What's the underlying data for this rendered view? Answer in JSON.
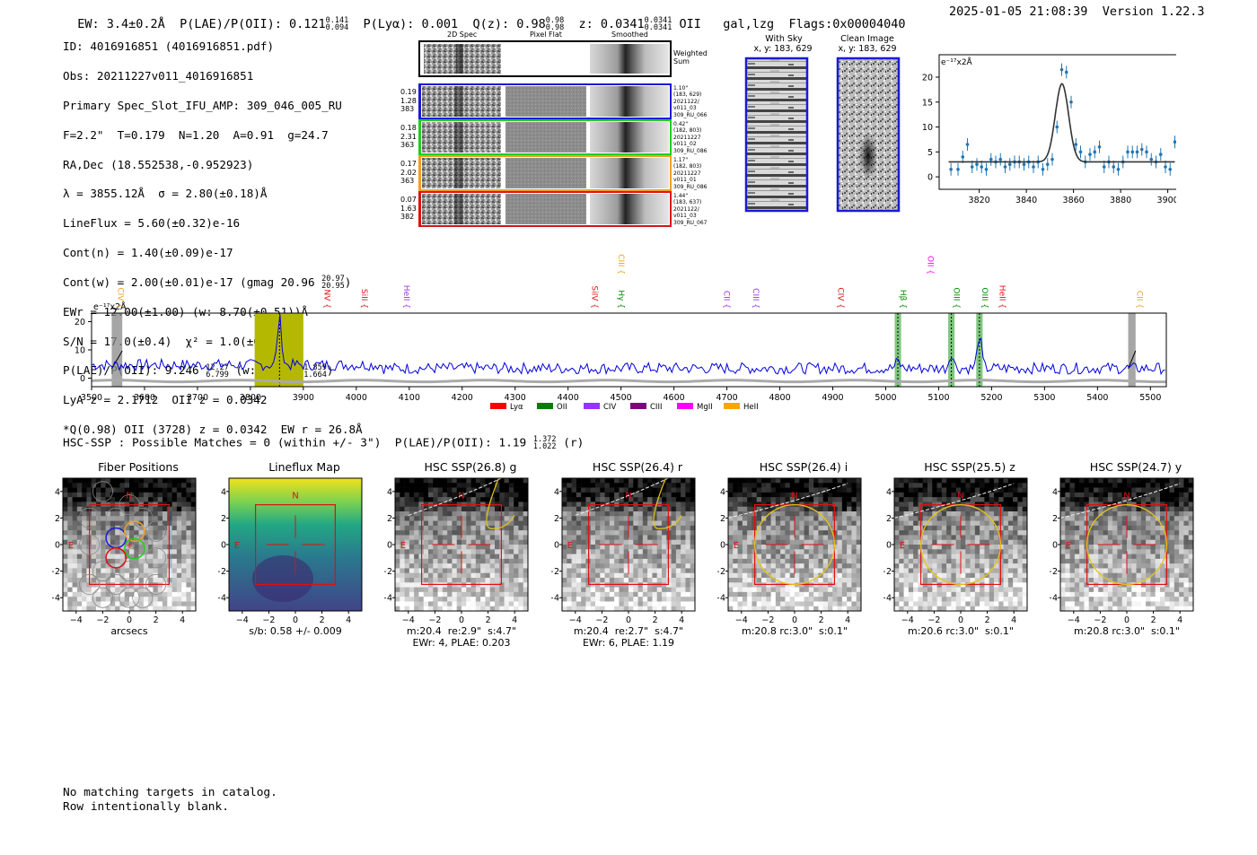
{
  "header": {
    "ew_label": "EW: 3.4±0.2Å",
    "plae_label": "P(LAE)/P(OII): 0.121",
    "plae_hi": "0.141",
    "plae_lo": "0.094",
    "plya": "P(Lyα): 0.001",
    "qz_label": "Q(z): 0.98",
    "qz_hi": "0.98",
    "qz_lo": "0.98",
    "z_label": "z: 0.0341",
    "z_hi": "0.0341",
    "z_lo": "0.0341",
    "line": "OII",
    "cls": "gal,lzg",
    "flags": "Flags:0x00004040",
    "timestamp": "2025-01-05 21:08:39",
    "version": "Version 1.22.3"
  },
  "info": {
    "id": "ID: 4016916851 (4016916851.pdf)",
    "obs": "Obs: 20211227v011_4016916851",
    "primary": "Primary Spec_Slot_IFU_AMP: 309_046_005_RU",
    "fit": "F=2.2\"  T=0.179  N=1.20  A=0.91  g=24.7",
    "radec": "RA,Dec (18.552538,-0.952923)",
    "lambda": "λ = 3855.12Å  σ = 2.80(±0.18)Å",
    "lineflux": "LineFlux = 5.60(±0.32)e-16",
    "contn": "Cont(n) = 1.40(±0.09)e-17",
    "contw": "Cont(w) = 2.00(±0.01)e-17 (gmag 20.96",
    "gmag_hi": "20.97",
    "gmag_lo": "20.95",
    "contw_close": ")",
    "ewr": "EWr = 12.00(±1.00) (w: 8.70(±0.51))Å",
    "sn": "S/N = 17.0(±0.4)  χ² = 1.0(±0.2)",
    "plae": "P(LAE)/P(OII): 9.246",
    "plae_hi": "12.27",
    "plae_lo": "6.799",
    "plae_w": "(w: 1.766",
    "plae_w_hi": "1.859",
    "plae_w_lo": "1.664",
    "plae_close": ")",
    "lya": "LyA z = 2.1712  OII z = 0.0342",
    "q": "*Q(0.98) OII (3728) z = 0.0342  EW r = 26.8Å"
  },
  "cutouts": {
    "col_2d": "2D Spec",
    "col_flat": "Pixel Flat",
    "col_smooth": "Smoothed",
    "weighted": "Weighted Sum",
    "rows": [
      {
        "l1": "0.19",
        "l2": "1.28",
        "l3": "383",
        "r1": "1.10\"",
        "r2": "(183, 629)",
        "r3": "2021122/",
        "r4": "v011_03",
        "r5": "309_RU_066",
        "color": "#1a1ad6"
      },
      {
        "l1": "0.18",
        "l2": "2.31",
        "l3": "363",
        "r1": "0.42\"",
        "r2": "(182, 803)",
        "r3": "20211227",
        "r4": "v011_02",
        "r5": "309_RU_086",
        "color": "#22cc22"
      },
      {
        "l1": "0.17",
        "l2": "2.02",
        "l3": "363",
        "r1": "1.17\"",
        "r2": "(182, 803)",
        "r3": "20211227",
        "r4": "v011_01",
        "r5": "309_RU_086",
        "color": "#f0a020"
      },
      {
        "l1": "0.07",
        "l2": "1.63",
        "l3": "382",
        "r1": "1.44\"",
        "r2": "(183, 637)",
        "r3": "2021122/",
        "r4": "v011_03",
        "r5": "309_RU_067",
        "color": "#dd1111"
      }
    ]
  },
  "sky": {
    "with_sky": "With Sky",
    "clean": "Clean Image",
    "coords": "x, y: 183, 629"
  },
  "zoom_chart": {
    "unit": "e⁻¹⁷x2Å",
    "xticks": [
      "3820",
      "3840",
      "3860",
      "3880",
      "3900"
    ],
    "yticks": [
      "0",
      "5",
      "10",
      "15",
      "20"
    ]
  },
  "chart_data": [
    {
      "type": "scatter",
      "title": "",
      "ylabel": "e⁻¹⁷x2Å",
      "xlim": [
        3803,
        3907
      ],
      "ylim": [
        -2.5,
        24.5
      ],
      "x": [
        3808,
        3811,
        3813,
        3815,
        3817,
        3819,
        3821,
        3823,
        3825,
        3827,
        3829,
        3831,
        3833,
        3835,
        3837,
        3839,
        3841,
        3843,
        3845,
        3847,
        3849,
        3851,
        3853,
        3855,
        3857,
        3859,
        3861,
        3863,
        3865,
        3867,
        3869,
        3871,
        3873,
        3875,
        3877,
        3879,
        3881,
        3883,
        3885,
        3887,
        3889,
        3891,
        3893,
        3895,
        3897,
        3899,
        3901,
        3903
      ],
      "y": [
        1.5,
        1.5,
        4.0,
        6.5,
        2.0,
        2.5,
        2.0,
        1.5,
        3.5,
        3.0,
        3.5,
        2.0,
        2.5,
        3.0,
        3.0,
        2.5,
        3.0,
        2.0,
        3.0,
        1.5,
        2.5,
        3.5,
        10.0,
        21.5,
        21.0,
        15.0,
        6.5,
        5.0,
        3.0,
        4.5,
        5.0,
        6.0,
        2.0,
        3.0,
        2.0,
        1.5,
        3.0,
        5.0,
        5.0,
        5.0,
        5.5,
        5.0,
        3.5,
        3.0,
        4.5,
        2.0,
        1.5,
        7.0
      ],
      "fit_peak": 18.7,
      "fit_center": 3855.1,
      "fit_sigma": 2.8,
      "fit_cont": 3.0
    },
    {
      "type": "line",
      "xlim": [
        3500,
        5530
      ],
      "ylim": [
        -3,
        23
      ],
      "xticks": [
        "3500",
        "3600",
        "3700",
        "3800",
        "3900",
        "4000",
        "4100",
        "4200",
        "4300",
        "4400",
        "4500",
        "4600",
        "4700",
        "4800",
        "4900",
        "5000",
        "5100",
        "5200",
        "5300",
        "5400",
        "5500"
      ],
      "yticks": [
        "0",
        "10",
        "20"
      ],
      "unit": "e⁻¹⁷x2Å",
      "peaks": [
        {
          "x": 3855,
          "y": 20
        },
        {
          "x": 5023,
          "y": 6
        },
        {
          "x": 5124,
          "y": 9
        },
        {
          "x": 5177,
          "y": 15
        }
      ],
      "lines": [
        {
          "label": "CIV",
          "x": 3545,
          "color": "#f0a020",
          "row": "low"
        },
        {
          "label": "NV",
          "x": 3935,
          "color": "#dd1111",
          "row": "low"
        },
        {
          "label": "SiII",
          "x": 4005,
          "color": "#dd1111",
          "row": "low"
        },
        {
          "label": "HeII",
          "x": 4085,
          "color": "#9933dd",
          "row": "low"
        },
        {
          "label": "SiIV",
          "x": 4440,
          "color": "#dd1111",
          "row": "low"
        },
        {
          "label": "CIII",
          "x": 4490,
          "color": "#f0a020",
          "row": "high"
        },
        {
          "label": "Hγ",
          "x": 4490,
          "color": "#008800",
          "row": "low"
        },
        {
          "label": "CII",
          "x": 4690,
          "color": "#9933dd",
          "row": "low"
        },
        {
          "label": "CIII",
          "x": 4745,
          "color": "#9933dd",
          "row": "low"
        },
        {
          "label": "CIV",
          "x": 4905,
          "color": "#dd1111",
          "row": "low"
        },
        {
          "label": "Hβ",
          "x": 5023,
          "color": "#008800",
          "row": "low"
        },
        {
          "label": "OII",
          "x": 5075,
          "color": "#ff00ff",
          "row": "high"
        },
        {
          "label": "OIII",
          "x": 5124,
          "color": "#008800",
          "row": "low"
        },
        {
          "label": "OIII",
          "x": 5177,
          "color": "#008800",
          "row": "low"
        },
        {
          "label": "HeII",
          "x": 5210,
          "color": "#dd1111",
          "row": "low"
        },
        {
          "label": "CII",
          "x": 5470,
          "color": "#f0a020",
          "row": "low"
        }
      ],
      "legend": [
        {
          "label": "Lyα",
          "color": "#ff0000"
        },
        {
          "label": "OII",
          "color": "#008000"
        },
        {
          "label": "CIV",
          "color": "#9b30ff"
        },
        {
          "label": "CIII",
          "color": "#800080"
        },
        {
          "label": "MgII",
          "color": "#ff00ff"
        },
        {
          "label": "HeII",
          "color": "#ffa500"
        }
      ]
    }
  ],
  "hsc": {
    "summary": "HSC-SSP : Possible Matches = 0 (within +/- 3\")  P(LAE)/P(OII): 1.19",
    "sum_hi": "1.372",
    "sum_lo": "1.022",
    "sum_end": "(r)",
    "ticks": [
      "−4",
      "−2",
      "0",
      "2",
      "4"
    ],
    "n_label": "N",
    "e_label": "E",
    "panels": [
      {
        "title": "Fiber Positions",
        "cap1": "arcsecs",
        "cap2": ""
      },
      {
        "title": "Lineflux Map",
        "cap1": "s/b: 0.58 +/- 0.009",
        "cap2": ""
      },
      {
        "title": "HSC SSP(26.8) g",
        "cap1": "m:20.4  re:2.9\"  s:4.7\"",
        "cap2": "EWr: 4, PLAE: 0.203"
      },
      {
        "title": "HSC SSP(26.4) r",
        "cap1": "m:20.4  re:2.7\"  s:4.7\"",
        "cap2": "EWr: 6, PLAE: 1.19"
      },
      {
        "title": "HSC SSP(26.4) i",
        "cap1": "m:20.8 rc:3.0\"  s:0.1\"",
        "cap2": ""
      },
      {
        "title": "HSC SSP(25.5) z",
        "cap1": "m:20.6 rc:3.0\"  s:0.1\"",
        "cap2": ""
      },
      {
        "title": "HSC SSP(24.7) y",
        "cap1": "m:20.8 rc:3.0\"  s:0.1\"",
        "cap2": ""
      }
    ]
  },
  "footer": {
    "line1": "No matching targets in catalog.",
    "line2": "Row intentionally blank."
  }
}
